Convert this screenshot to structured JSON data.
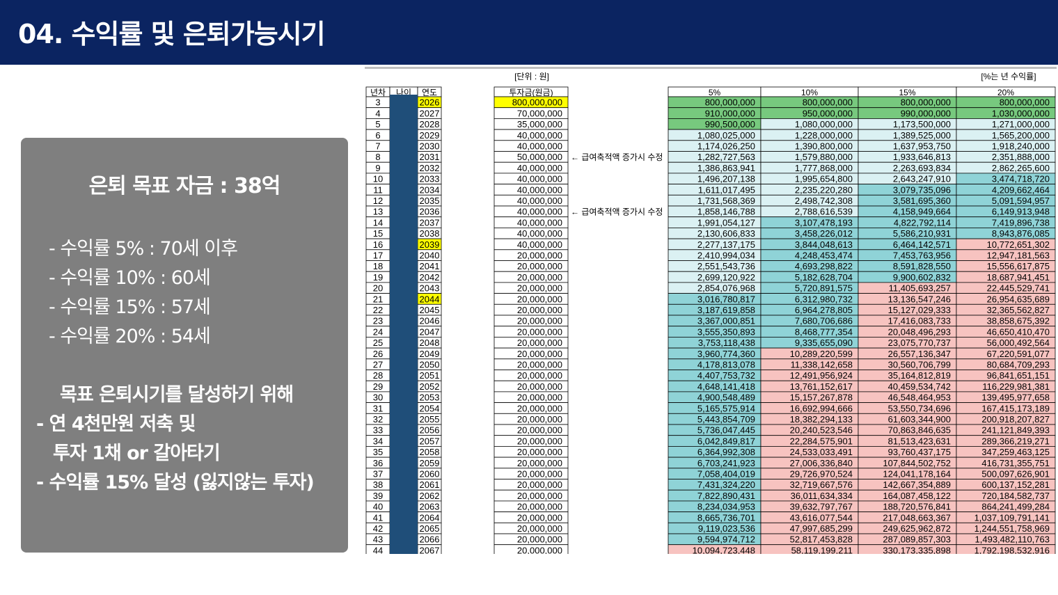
{
  "header": {
    "title": "04. 수익률 및 은퇴가능시기"
  },
  "panel": {
    "goal": "은퇴 목표 자금 : 38억",
    "rates": [
      "- 수익률   5% : 70세 이후",
      "- 수익률 10% : 60세",
      "- 수익률 15% : 57세",
      "- 수익률 20% : 54세"
    ],
    "plan_title": "목표 은퇴시기를 달성하기 위해",
    "plan_items": [
      "- 연 4천만원 저축 및",
      "투자 1채 or 갈아타기",
      "- 수익률 15% 달성 (잃지않는 투자)"
    ]
  },
  "sheet": {
    "unit_label": "[단위 : 원]",
    "rate_label": "[%는 년 수익률]",
    "col_headers": {
      "year_idx": "년차",
      "age": "나이",
      "year": "연도",
      "invest": "투자금(원금)"
    },
    "rate_headers": [
      "5%",
      "10%",
      "15%",
      "20%"
    ],
    "notes": [
      {
        "row": 5,
        "text": "← 급여축적액 증가시 수정"
      },
      {
        "row": 10,
        "text": "← 급여축적액 증가시 수정"
      }
    ],
    "highlight_years": [
      2026,
      2039,
      2044
    ],
    "colors": {
      "green": "#77c97e",
      "light": "#dbf1f3",
      "teal": "#8fd3d7",
      "pink": "#f7c3c0",
      "yellow": "#ffff00",
      "age_fill": "#1f4e79"
    },
    "rows": [
      {
        "n": "3",
        "year": "2026",
        "invest": "800,000,000",
        "v": [
          "800,000,000",
          "800,000,000",
          "800,000,000",
          "800,000,000"
        ]
      },
      {
        "n": "4",
        "year": "2027",
        "invest": "70,000,000",
        "v": [
          "910,000,000",
          "950,000,000",
          "990,000,000",
          "1,030,000,000"
        ]
      },
      {
        "n": "5",
        "year": "2028",
        "invest": "35,000,000",
        "v": [
          "990,500,000",
          "1,080,000,000",
          "1,173,500,000",
          "1,271,000,000"
        ]
      },
      {
        "n": "6",
        "year": "2029",
        "invest": "40,000,000",
        "v": [
          "1,080,025,000",
          "1,228,000,000",
          "1,389,525,000",
          "1,565,200,000"
        ]
      },
      {
        "n": "7",
        "year": "2030",
        "invest": "40,000,000",
        "v": [
          "1,174,026,250",
          "1,390,800,000",
          "1,637,953,750",
          "1,918,240,000"
        ]
      },
      {
        "n": "8",
        "year": "2031",
        "invest": "50,000,000",
        "v": [
          "1,282,727,563",
          "1,579,880,000",
          "1,933,646,813",
          "2,351,888,000"
        ]
      },
      {
        "n": "9",
        "year": "2032",
        "invest": "40,000,000",
        "v": [
          "1,386,863,941",
          "1,777,868,000",
          "2,263,693,834",
          "2,862,265,600"
        ]
      },
      {
        "n": "10",
        "year": "2033",
        "invest": "40,000,000",
        "v": [
          "1,496,207,138",
          "1,995,654,800",
          "2,643,247,910",
          "3,474,718,720"
        ]
      },
      {
        "n": "11",
        "year": "2034",
        "invest": "40,000,000",
        "v": [
          "1,611,017,495",
          "2,235,220,280",
          "3,079,735,096",
          "4,209,662,464"
        ]
      },
      {
        "n": "12",
        "year": "2035",
        "invest": "40,000,000",
        "v": [
          "1,731,568,369",
          "2,498,742,308",
          "3,581,695,360",
          "5,091,594,957"
        ]
      },
      {
        "n": "13",
        "year": "2036",
        "invest": "40,000,000",
        "v": [
          "1,858,146,788",
          "2,788,616,539",
          "4,158,949,664",
          "6,149,913,948"
        ]
      },
      {
        "n": "14",
        "year": "2037",
        "invest": "40,000,000",
        "v": [
          "1,991,054,127",
          "3,107,478,193",
          "4,822,792,114",
          "7,419,896,738"
        ]
      },
      {
        "n": "15",
        "year": "2038",
        "invest": "40,000,000",
        "v": [
          "2,130,606,833",
          "3,458,226,012",
          "5,586,210,931",
          "8,943,876,085"
        ]
      },
      {
        "n": "16",
        "year": "2039",
        "invest": "40,000,000",
        "v": [
          "2,277,137,175",
          "3,844,048,613",
          "6,464,142,571",
          "10,772,651,302"
        ]
      },
      {
        "n": "17",
        "year": "2040",
        "invest": "20,000,000",
        "v": [
          "2,410,994,034",
          "4,248,453,474",
          "7,453,763,956",
          "12,947,181,563"
        ]
      },
      {
        "n": "18",
        "year": "2041",
        "invest": "20,000,000",
        "v": [
          "2,551,543,736",
          "4,693,298,822",
          "8,591,828,550",
          "15,556,617,875"
        ]
      },
      {
        "n": "19",
        "year": "2042",
        "invest": "20,000,000",
        "v": [
          "2,699,120,922",
          "5,182,628,704",
          "9,900,602,832",
          "18,687,941,451"
        ]
      },
      {
        "n": "20",
        "year": "2043",
        "invest": "20,000,000",
        "v": [
          "2,854,076,968",
          "5,720,891,575",
          "11,405,693,257",
          "22,445,529,741"
        ]
      },
      {
        "n": "21",
        "year": "2044",
        "invest": "20,000,000",
        "v": [
          "3,016,780,817",
          "6,312,980,732",
          "13,136,547,246",
          "26,954,635,689"
        ]
      },
      {
        "n": "22",
        "year": "2045",
        "invest": "20,000,000",
        "v": [
          "3,187,619,858",
          "6,964,278,805",
          "15,127,029,333",
          "32,365,562,827"
        ]
      },
      {
        "n": "23",
        "year": "2046",
        "invest": "20,000,000",
        "v": [
          "3,367,000,851",
          "7,680,706,686",
          "17,416,083,733",
          "38,858,675,392"
        ]
      },
      {
        "n": "24",
        "year": "2047",
        "invest": "20,000,000",
        "v": [
          "3,555,350,893",
          "8,468,777,354",
          "20,048,496,293",
          "46,650,410,470"
        ]
      },
      {
        "n": "25",
        "year": "2048",
        "invest": "20,000,000",
        "v": [
          "3,753,118,438",
          "9,335,655,090",
          "23,075,770,737",
          "56,000,492,564"
        ]
      },
      {
        "n": "26",
        "year": "2049",
        "invest": "20,000,000",
        "v": [
          "3,960,774,360",
          "10,289,220,599",
          "26,557,136,347",
          "67,220,591,077"
        ]
      },
      {
        "n": "27",
        "year": "2050",
        "invest": "20,000,000",
        "v": [
          "4,178,813,078",
          "11,338,142,658",
          "30,560,706,799",
          "80,684,709,293"
        ]
      },
      {
        "n": "28",
        "year": "2051",
        "invest": "20,000,000",
        "v": [
          "4,407,753,732",
          "12,491,956,924",
          "35,164,812,819",
          "96,841,651,151"
        ]
      },
      {
        "n": "29",
        "year": "2052",
        "invest": "20,000,000",
        "v": [
          "4,648,141,418",
          "13,761,152,617",
          "40,459,534,742",
          "116,229,981,381"
        ]
      },
      {
        "n": "30",
        "year": "2053",
        "invest": "20,000,000",
        "v": [
          "4,900,548,489",
          "15,157,267,878",
          "46,548,464,953",
          "139,495,977,658"
        ]
      },
      {
        "n": "31",
        "year": "2054",
        "invest": "20,000,000",
        "v": [
          "5,165,575,914",
          "16,692,994,666",
          "53,550,734,696",
          "167,415,173,189"
        ]
      },
      {
        "n": "32",
        "year": "2055",
        "invest": "20,000,000",
        "v": [
          "5,443,854,709",
          "18,382,294,133",
          "61,603,344,900",
          "200,918,207,827"
        ]
      },
      {
        "n": "33",
        "year": "2056",
        "invest": "20,000,000",
        "v": [
          "5,736,047,445",
          "20,240,523,546",
          "70,863,846,635",
          "241,121,849,393"
        ]
      },
      {
        "n": "34",
        "year": "2057",
        "invest": "20,000,000",
        "v": [
          "6,042,849,817",
          "22,284,575,901",
          "81,513,423,631",
          "289,366,219,271"
        ]
      },
      {
        "n": "35",
        "year": "2058",
        "invest": "20,000,000",
        "v": [
          "6,364,992,308",
          "24,533,033,491",
          "93,760,437,175",
          "347,259,463,125"
        ]
      },
      {
        "n": "36",
        "year": "2059",
        "invest": "20,000,000",
        "v": [
          "6,703,241,923",
          "27,006,336,840",
          "107,844,502,752",
          "416,731,355,751"
        ]
      },
      {
        "n": "37",
        "year": "2060",
        "invest": "20,000,000",
        "v": [
          "7,058,404,019",
          "29,726,970,524",
          "124,041,178,164",
          "500,097,626,901"
        ]
      },
      {
        "n": "38",
        "year": "2061",
        "invest": "20,000,000",
        "v": [
          "7,431,324,220",
          "32,719,667,576",
          "142,667,354,889",
          "600,137,152,281"
        ]
      },
      {
        "n": "39",
        "year": "2062",
        "invest": "20,000,000",
        "v": [
          "7,822,890,431",
          "36,011,634,334",
          "164,087,458,122",
          "720,184,582,737"
        ]
      },
      {
        "n": "40",
        "year": "2063",
        "invest": "20,000,000",
        "v": [
          "8,234,034,953",
          "39,632,797,767",
          "188,720,576,841",
          "864,241,499,284"
        ]
      },
      {
        "n": "41",
        "year": "2064",
        "invest": "20,000,000",
        "v": [
          "8,665,736,701",
          "43,616,077,544",
          "217,048,663,367",
          "1,037,109,791,141"
        ]
      },
      {
        "n": "42",
        "year": "2065",
        "invest": "20,000,000",
        "v": [
          "9,119,023,536",
          "47,997,685,299",
          "249,625,962,872",
          "1,244,551,758,969"
        ]
      },
      {
        "n": "43",
        "year": "2066",
        "invest": "20,000,000",
        "v": [
          "9,594,974,712",
          "52,817,453,828",
          "287,089,857,303",
          "1,493,482,110,763"
        ]
      },
      {
        "n": "44",
        "year": "2067",
        "invest": "20,000,000",
        "v": [
          "10,094,723,448",
          "58,119,199,211",
          "330,173,335,898",
          "1,792,198,532,916"
        ]
      }
    ]
  }
}
